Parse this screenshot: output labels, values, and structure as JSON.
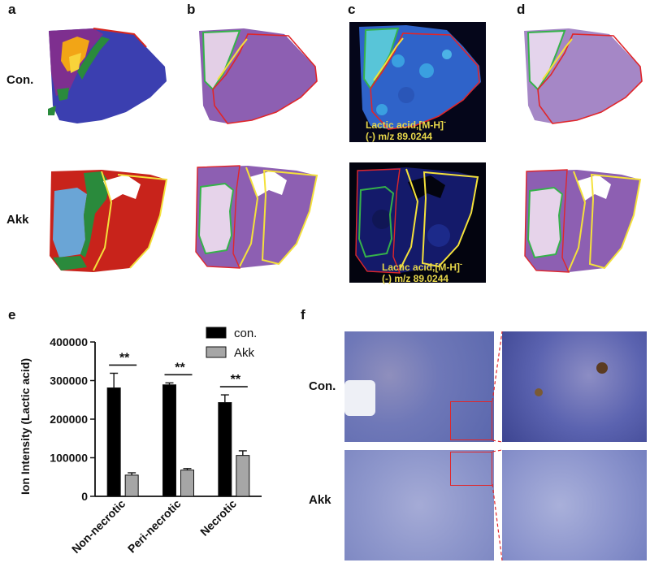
{
  "panels": {
    "a": "a",
    "b": "b",
    "c": "c",
    "d": "d",
    "e": "e",
    "f": "f"
  },
  "rows": {
    "top": "Con.",
    "bottom": "Akk"
  },
  "overlay": {
    "line1": "Lactic acid,[M-H]",
    "sup": "-",
    "line2": "(-) m/z 89.0244"
  },
  "micro": {
    "top": "Con.",
    "bottom": "Akk"
  },
  "colors": {
    "con_bar": "#000000",
    "akk_bar": "#a6a6a6",
    "dark_blue_bg": "#0a0c2a",
    "he_purple": "#7e4fa6",
    "ihc_blue": "#3d4fa0"
  },
  "chart_data": {
    "type": "bar",
    "categories": [
      "Non-necrotic",
      "Peri-necrotic",
      "Necrotic"
    ],
    "series": [
      {
        "name": "con.",
        "values": [
          281000,
          289000,
          243000
        ],
        "errors": [
          38000,
          5000,
          20000
        ]
      },
      {
        "name": "Akk",
        "values": [
          55000,
          68000,
          106000
        ],
        "errors": [
          6000,
          4000,
          12000
        ]
      }
    ],
    "significance": [
      "**",
      "**",
      "**"
    ],
    "ylabel": "Ion Intensity (Lactic acid)",
    "ylim": [
      0,
      400000
    ],
    "yticks": [
      "0",
      "100000",
      "200000",
      "300000",
      "400000"
    ],
    "legend": "top-right"
  }
}
